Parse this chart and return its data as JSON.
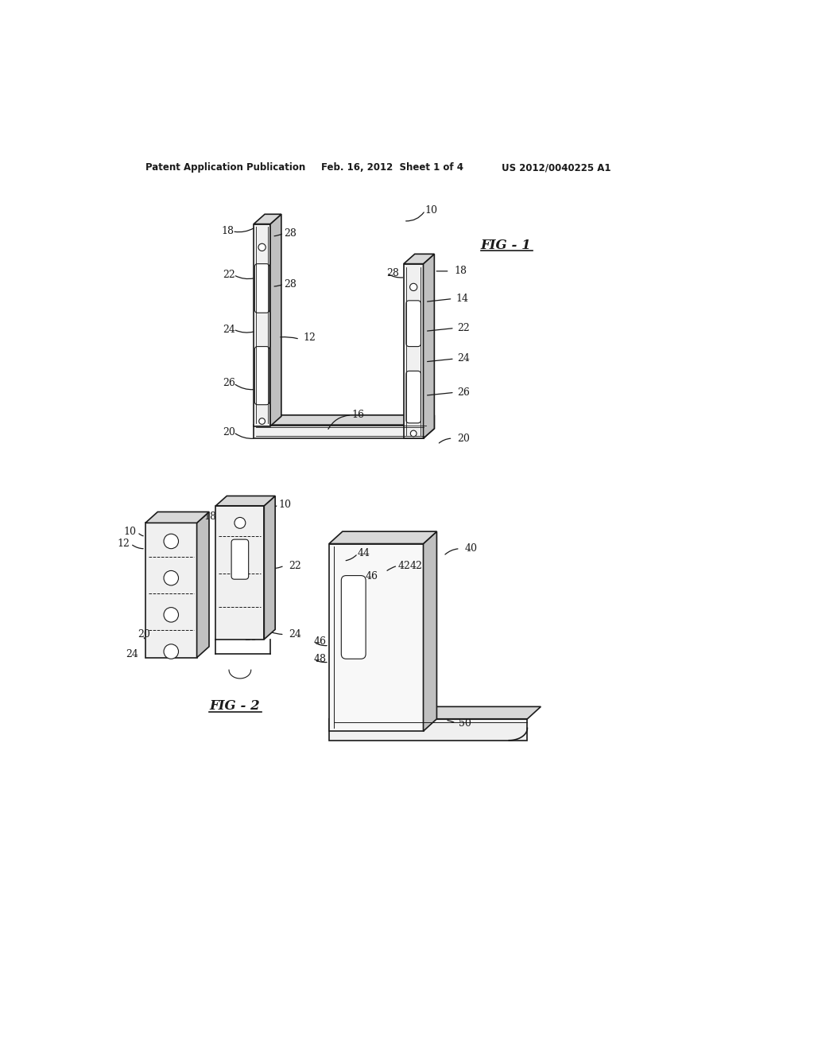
{
  "bg_color": "#ffffff",
  "header_left": "Patent Application Publication",
  "header_mid": "Feb. 16, 2012  Sheet 1 of 4",
  "header_right": "US 2012/0040225 A1",
  "fig1_label": "FIG - 1",
  "fig2_label": "FIG - 2",
  "fig_width": 10.24,
  "fig_height": 13.2,
  "dpi": 100,
  "line_color": "#1a1a1a",
  "face_front": "#f0f0f0",
  "face_top": "#d8d8d8",
  "face_side": "#c0c0c0"
}
